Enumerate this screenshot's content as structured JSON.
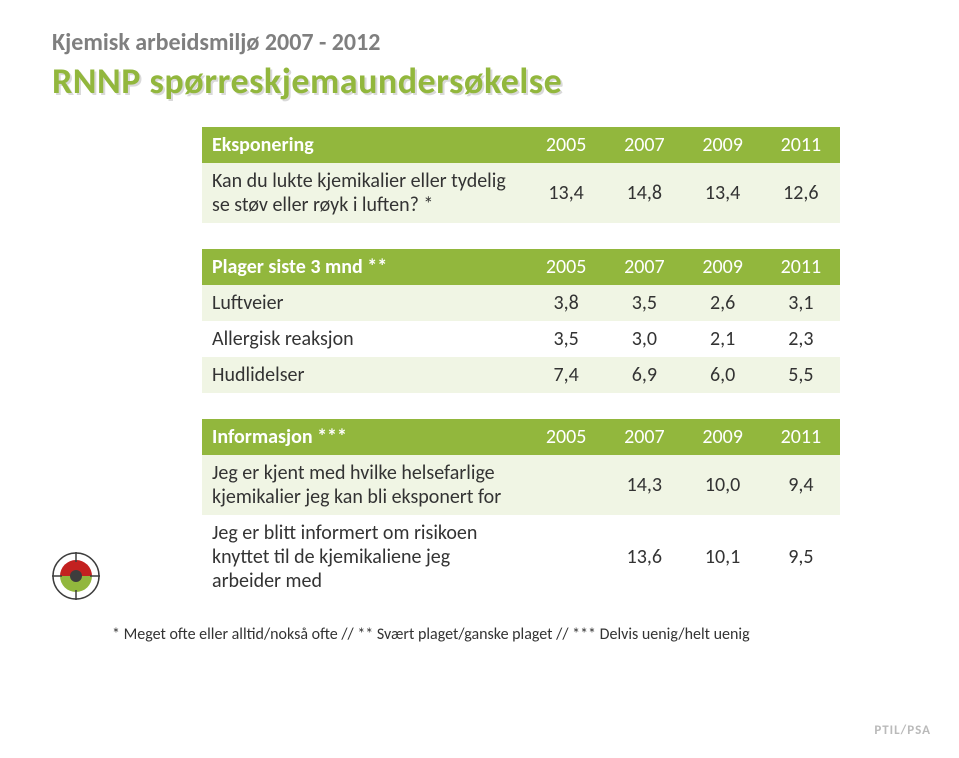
{
  "pretitle": "Kjemisk arbeidsmiljø 2007 - 2012",
  "title": "RNNP spørreskjemaundersøkelse",
  "colors": {
    "header_bg": "#92b73d",
    "header_fg": "#ffffff",
    "row_even_bg": "#f0f5e4",
    "row_odd_bg": "#ffffff",
    "text": "#333333",
    "pretitle": "#7f7f7f",
    "title": "#92b73d",
    "title_shadow": "#d9d9d9",
    "brand": "#bababa",
    "bullet_outer": "#3d3d3d",
    "bullet_top": "#c32120",
    "bullet_bottom": "#92b73d",
    "bullet_center": "#3d3d3d"
  },
  "tables": [
    {
      "head_label": "Eksponering",
      "years": [
        "2005",
        "2007",
        "2009",
        "2011"
      ],
      "rows": [
        {
          "label": "Kan du lukte kjemikalier eller tydelig se støv eller røyk i luften? *",
          "values": [
            "13,4",
            "14,8",
            "13,4",
            "12,6"
          ]
        }
      ]
    },
    {
      "head_label": "Plager siste 3 mnd **",
      "years": [
        "2005",
        "2007",
        "2009",
        "2011"
      ],
      "rows": [
        {
          "label": "Luftveier",
          "values": [
            "3,8",
            "3,5",
            "2,6",
            "3,1"
          ]
        },
        {
          "label": "Allergisk reaksjon",
          "values": [
            "3,5",
            "3,0",
            "2,1",
            "2,3"
          ]
        },
        {
          "label": "Hudlidelser",
          "values": [
            "7,4",
            "6,9",
            "6,0",
            "5,5"
          ]
        }
      ]
    },
    {
      "head_label": "Informasjon ***",
      "years": [
        "2005",
        "2007",
        "2009",
        "2011"
      ],
      "rows": [
        {
          "label": "Jeg er kjent med hvilke helsefarlige kjemikalier jeg kan bli eksponert for",
          "values": [
            "",
            "14,3",
            "10,0",
            "9,4"
          ]
        },
        {
          "label": "Jeg er blitt informert om risikoen knyttet til de kjemikaliene jeg arbeider med",
          "values": [
            "",
            "13,6",
            "10,1",
            "9,5"
          ]
        }
      ]
    }
  ],
  "footnote": "* Meget ofte eller alltid/nokså ofte  //  ** Svært plaget/ganske plaget // *** Delvis uenig/helt uenig",
  "brand": "PTIL/PSA",
  "bullet_icon": {
    "radius_outer": 24,
    "radius_inner": 7
  }
}
